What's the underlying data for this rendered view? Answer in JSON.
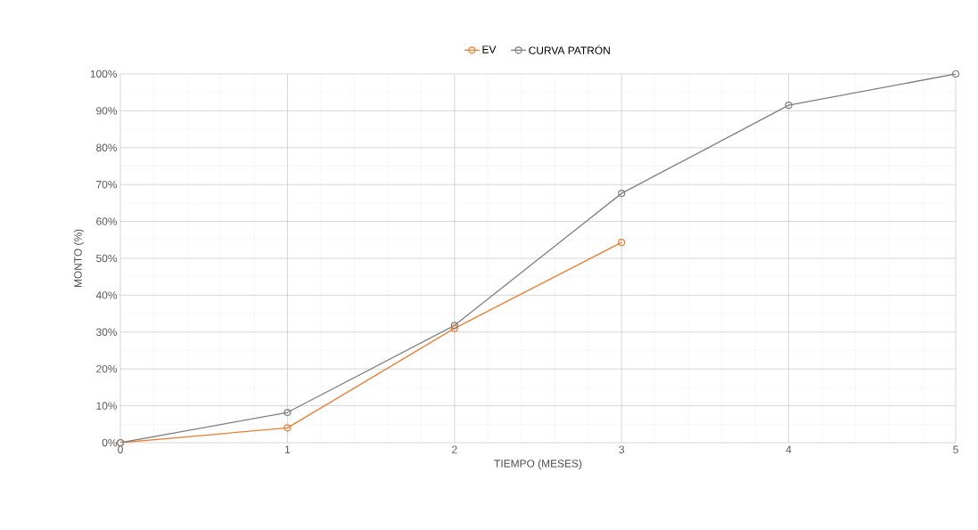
{
  "chart_data": {
    "type": "line",
    "xlabel": "TIEMPO (MESES)",
    "ylabel": "MONTO  (%)",
    "x": [
      0,
      1,
      2,
      3,
      4,
      5
    ],
    "series": [
      {
        "name": "EV",
        "color": "#ed7d31",
        "values": [
          0,
          4,
          31,
          54.3,
          null,
          null
        ]
      },
      {
        "name": "CURVA PATRÓN",
        "color": "#7f7f7f",
        "values": [
          0,
          8.2,
          31.8,
          67.6,
          91.5,
          100
        ]
      }
    ],
    "xlim": [
      0,
      5
    ],
    "ylim": [
      0,
      100
    ],
    "xticks": [
      0,
      1,
      2,
      3,
      4,
      5
    ],
    "yticks": [
      {
        "value": 0,
        "label": "0%"
      },
      {
        "value": 10,
        "label": "10%"
      },
      {
        "value": 20,
        "label": "20%"
      },
      {
        "value": 30,
        "label": "30%"
      },
      {
        "value": 40,
        "label": "40%"
      },
      {
        "value": 50,
        "label": "50%"
      },
      {
        "value": 60,
        "label": "60%"
      },
      {
        "value": 70,
        "label": "70%"
      },
      {
        "value": 80,
        "label": "80%"
      },
      {
        "value": 90,
        "label": "90%"
      },
      {
        "value": 100,
        "label": "100%"
      }
    ],
    "grid": true,
    "legend": "top",
    "marker": "circle",
    "line_style": "solid"
  }
}
